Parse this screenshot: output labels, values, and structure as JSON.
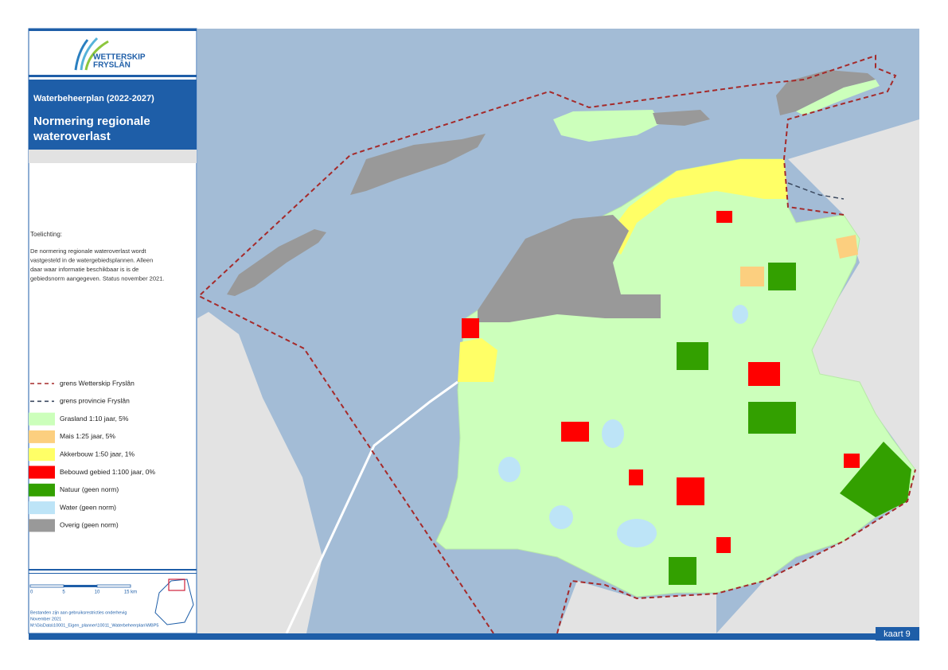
{
  "header": {
    "logo": [
      "WETTERSKIP",
      "FRYSLÂN"
    ],
    "subtitle": "Waterbeheerplan (2022-2027)",
    "title": [
      "Normering regionale",
      "wateroverlast"
    ]
  },
  "explanation": {
    "heading": "Toelichting:",
    "lines": [
      "De normering regionale wateroverlast wordt",
      "vastgesteld in de watergebiedsplannen. Alleen",
      "daar waar informatie beschikbaar is is de",
      "gebiedsnorm aangegeven. Status november 2021."
    ]
  },
  "legend": [
    {
      "label": "grens Wetterskip Fryslân",
      "line": "#a52a2a"
    },
    {
      "label": "grens provincie Fryslân",
      "line": "#3c4a60"
    },
    {
      "label": "Grasland 1:10 jaar, 5%",
      "fill": "#ccffbb"
    },
    {
      "label": "Mais 1:25 jaar, 5%",
      "fill": "#fccf7f"
    },
    {
      "label": "Akkerbouw 1:50 jaar, 1%",
      "fill": "#ffff66"
    },
    {
      "label": "Bebouwd gebied 1:100 jaar, 0%",
      "fill": "#ff0000"
    },
    {
      "label": "Natuur (geen norm)",
      "fill": "#33a000"
    },
    {
      "label": "Water (geen norm)",
      "fill": "#bde4f7"
    },
    {
      "label": "Overig (geen norm)",
      "fill": "#999999"
    }
  ],
  "scale": [
    "0",
    "5",
    "10",
    "15 km"
  ],
  "footer": [
    "Bestanden zijn aan gebruiksrestricties onderhevig",
    "November 2021",
    "M:\\GisData\\10001_Eigen_planner\\10011_Waterbeheerplan\\WBP5"
  ],
  "map_label": "kaart 9"
}
